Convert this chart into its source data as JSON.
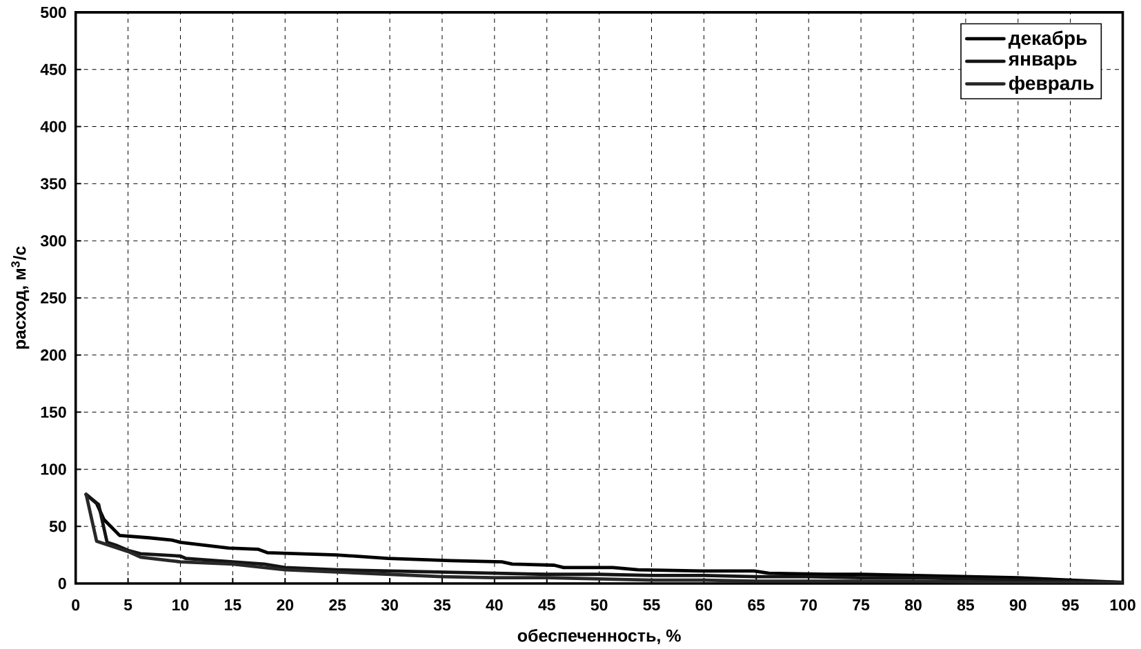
{
  "chart_data": {
    "type": "line",
    "xlabel": "обеспеченность, %",
    "ylabel": "расход, м$^{3}$/с",
    "xlim": [
      0,
      100
    ],
    "ylim": [
      0,
      500
    ],
    "xticks": [
      0,
      5,
      10,
      15,
      20,
      25,
      30,
      35,
      40,
      45,
      50,
      55,
      60,
      65,
      70,
      75,
      80,
      85,
      90,
      95,
      100
    ],
    "yticks": [
      0,
      50,
      100,
      150,
      200,
      250,
      300,
      350,
      400,
      450,
      500
    ],
    "grid": true,
    "legend": "top right",
    "marker": "none",
    "line_style": "solid",
    "series": [
      {
        "name": "декабрь",
        "color": "#000000",
        "x": [
          1,
          2,
          2.7,
          4.2,
          7,
          9.2,
          10,
          14.6,
          17.4,
          18.3,
          24.9,
          29.8,
          35.8,
          40.7,
          41.7,
          45.7,
          46.6,
          51.3,
          53.7,
          59.8,
          64.8,
          66.2,
          71.7,
          75,
          80,
          85,
          90,
          95,
          100
        ],
        "values": [
          78,
          70,
          56,
          42,
          40,
          38,
          36,
          31,
          30,
          27,
          25,
          22,
          20,
          19,
          17,
          16,
          14,
          14,
          12,
          11,
          11,
          9,
          8,
          8,
          7,
          6,
          5,
          3,
          1
        ]
      },
      {
        "name": "январь",
        "color": "#141414",
        "x": [
          1,
          2.2,
          3,
          4,
          5,
          6.2,
          10,
          10.5,
          15,
          18,
          20,
          25,
          30,
          35,
          40,
          45,
          50,
          55,
          60,
          65,
          70,
          75,
          80,
          85,
          90,
          95,
          100
        ],
        "values": [
          78,
          69,
          36,
          33,
          29,
          26,
          24,
          22,
          19,
          17,
          14,
          12,
          11,
          10,
          9,
          8,
          8,
          7,
          7,
          6,
          6,
          5,
          5,
          4,
          3,
          2,
          1
        ]
      },
      {
        "name": "февраль",
        "color": "#282828",
        "x": [
          1,
          2,
          3,
          4,
          5,
          6.2,
          9,
          10,
          15,
          18,
          20,
          25,
          30,
          35,
          40,
          45,
          50,
          55,
          60,
          65,
          70,
          80,
          90,
          100
        ],
        "values": [
          78,
          37,
          34,
          31,
          28,
          23,
          20,
          19,
          17,
          14,
          12,
          10,
          8,
          6,
          5,
          5,
          4,
          3,
          3,
          2,
          2,
          2,
          1,
          1
        ]
      }
    ]
  }
}
